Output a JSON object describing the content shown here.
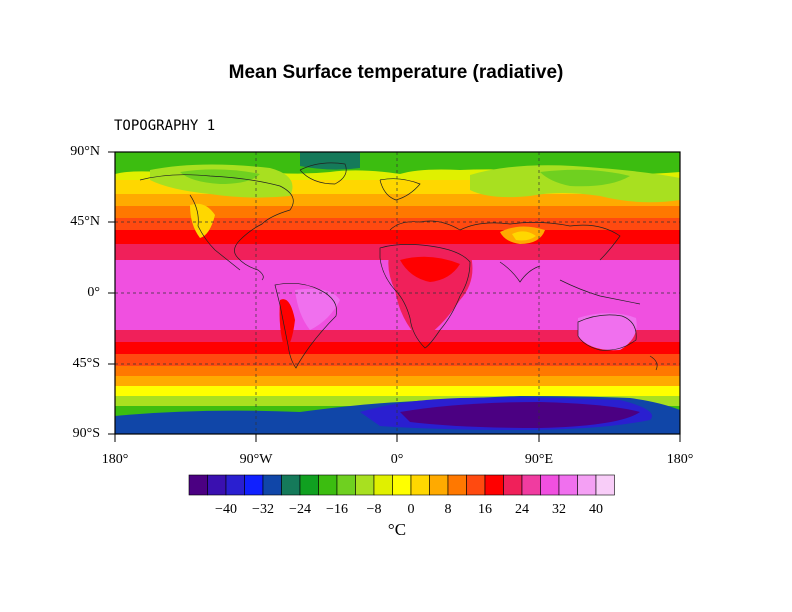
{
  "title": "Mean Surface temperature (radiative)",
  "subtitle": "TOPOGRAPHY 1",
  "map": {
    "projection": "cylindrical equidistant",
    "lat_ticks": [
      "90°N",
      "45°N",
      "0°",
      "45°S",
      "90°S"
    ],
    "lon_ticks": [
      "180°",
      "90°W",
      "0°",
      "90°E",
      "180°"
    ],
    "grid": "dashed at 45° lat / 90° lon",
    "coastlines": true
  },
  "colorbar": {
    "unit": "°C",
    "labels": [
      "−40",
      "−32",
      "−24",
      "−16",
      "−8",
      "0",
      "8",
      "16",
      "24",
      "32",
      "40"
    ],
    "colors": [
      "#4b0082",
      "#3a10b0",
      "#2a1fd0",
      "#1020ff",
      "#1046a8",
      "#157a5a",
      "#10a020",
      "#3cbd10",
      "#6fd020",
      "#a8e020",
      "#e0f000",
      "#ffff00",
      "#ffd700",
      "#ffaa00",
      "#ff7800",
      "#ff4a10",
      "#ff0000",
      "#f0205a",
      "#f03ca0",
      "#f050e0",
      "#f070ee",
      "#f4a0f4",
      "#f8cdf8"
    ]
  }
}
